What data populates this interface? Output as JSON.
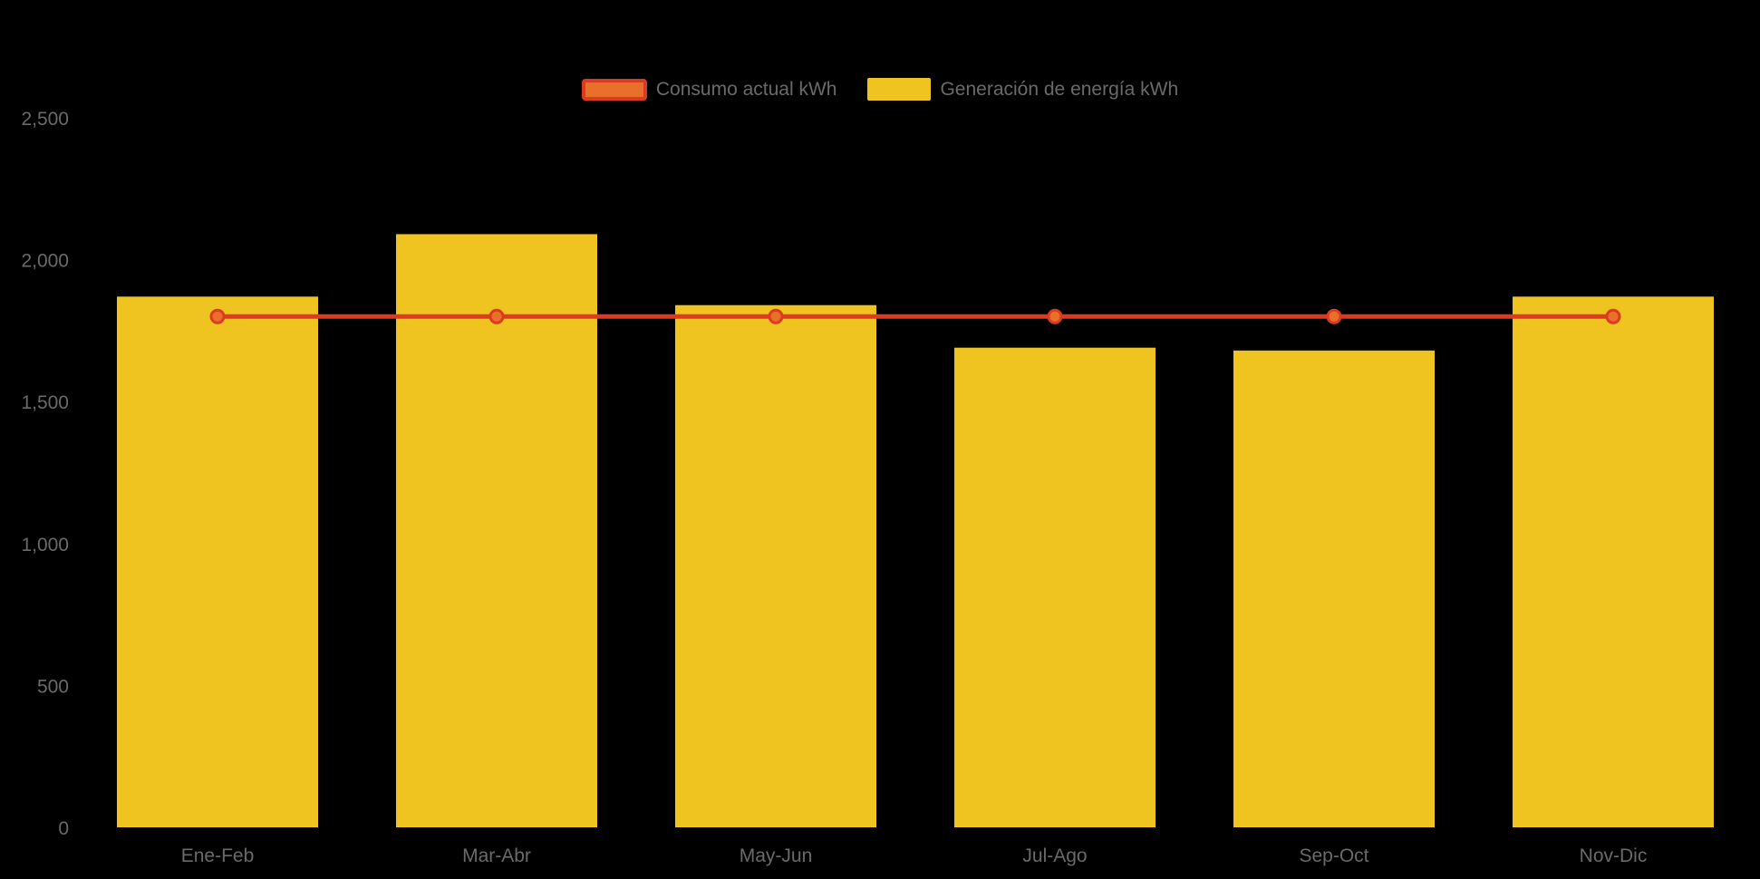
{
  "legend": {
    "items": [
      {
        "label": "Consumo actual kWh",
        "type": "line",
        "fill": "#E8702A",
        "border": "#DD3A22"
      },
      {
        "label": "Generación de energía kWh",
        "type": "bar",
        "fill": "#F0C420",
        "border": "#F0C420"
      }
    ]
  },
  "chart_data": {
    "type": "bar",
    "subtype": "bar with overlaid flat line series",
    "categories": [
      "Ene-Feb",
      "Mar-Abr",
      "May-Jun",
      "Jul-Ago",
      "Sep-Oct",
      "Nov-Dic"
    ],
    "series": [
      {
        "name": "Generación de energía kWh",
        "type": "bar",
        "color": "#F0C420",
        "values": [
          1870,
          2090,
          1840,
          1690,
          1680,
          1870
        ]
      },
      {
        "name": "Consumo actual kWh",
        "type": "line",
        "color": "#DD3A22",
        "marker_fill": "#E8702A",
        "values": [
          1800,
          1800,
          1800,
          1800,
          1800,
          1800
        ]
      }
    ],
    "title": "",
    "xlabel": "",
    "ylabel": "",
    "ylim": [
      0,
      2500
    ],
    "yticks": [
      0,
      500,
      1000,
      1500,
      2000,
      2500
    ],
    "ytick_labels": [
      "0",
      "500",
      "1,000",
      "1,500",
      "2,000",
      "2,500"
    ],
    "grid": false,
    "legend_position": "top-center",
    "background": "#000000",
    "text_color": "#6A6A6A"
  }
}
